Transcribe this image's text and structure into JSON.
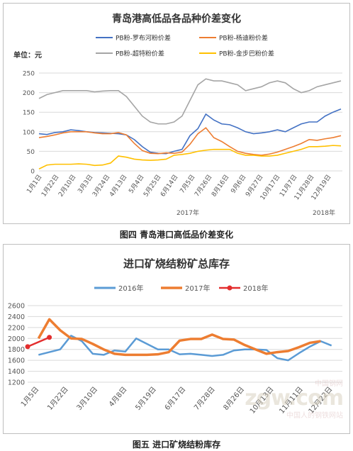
{
  "chart_data": [
    {
      "type": "line",
      "title": "青岛港高低品各品种价差变化",
      "unit_label": "单位：元",
      "xlabel": "2017年",
      "xlabel_end": "2018年",
      "ylim": [
        0,
        250
      ],
      "yticks": [
        "0",
        "50",
        "100",
        "150",
        "200",
        "250"
      ],
      "grid": true,
      "legend_position": "top",
      "tick_labels": [
        "1月1日",
        "1月22日",
        "2月10日",
        "3月3日",
        "3月24日",
        "4月13日",
        "5月4日",
        "5月25日",
        "6月14日",
        "7月5日",
        "7月26日",
        "8月16日",
        "9月6日",
        "9月27日",
        "10月17日",
        "11月7日",
        "11月28日",
        "12月19日"
      ],
      "series": [
        {
          "name": "PB粉-罗布河粉价差",
          "color": "#4472c4",
          "values": [
            95,
            93,
            98,
            100,
            105,
            103,
            100,
            98,
            97,
            96,
            95,
            92,
            80,
            62,
            48,
            45,
            44,
            50,
            55,
            90,
            108,
            145,
            130,
            120,
            118,
            110,
            100,
            95,
            97,
            100,
            105,
            100,
            110,
            120,
            125,
            125,
            140,
            150,
            158
          ]
        },
        {
          "name": "PB粉-杨迪粉价差",
          "color": "#ed7d31",
          "values": [
            85,
            88,
            92,
            97,
            100,
            100,
            100,
            97,
            95,
            95,
            98,
            92,
            70,
            52,
            45,
            44,
            46,
            45,
            48,
            68,
            95,
            110,
            85,
            75,
            62,
            50,
            45,
            42,
            40,
            43,
            48,
            55,
            62,
            70,
            80,
            78,
            82,
            85,
            90
          ]
        },
        {
          "name": "PB粉-超特粉价差",
          "color": "#a5a5a5",
          "values": [
            185,
            195,
            200,
            205,
            205,
            205,
            205,
            202,
            204,
            205,
            205,
            190,
            165,
            140,
            125,
            120,
            120,
            125,
            140,
            180,
            220,
            235,
            230,
            230,
            225,
            220,
            205,
            210,
            215,
            225,
            230,
            225,
            210,
            200,
            205,
            215,
            220,
            225,
            230
          ]
        },
        {
          "name": "PB粉-金步巴粉价差",
          "color": "#ffc000",
          "values": [
            5,
            15,
            17,
            17,
            17,
            18,
            17,
            14,
            15,
            20,
            38,
            35,
            30,
            28,
            27,
            28,
            30,
            40,
            42,
            45,
            50,
            53,
            55,
            55,
            55,
            45,
            40,
            40,
            38,
            38,
            40,
            45,
            50,
            55,
            62,
            62,
            63,
            65,
            64
          ]
        }
      ]
    },
    {
      "type": "line",
      "title": "进口矿烧结粉矿总库存",
      "ylim": [
        1200,
        2600
      ],
      "yticks": [
        "1200",
        "1400",
        "1600",
        "1800",
        "2000",
        "2200",
        "2400",
        "2600"
      ],
      "grid": true,
      "legend_position": "top",
      "tick_labels": [
        "1月5日",
        "1月22日",
        "3月10日",
        "4月8日",
        "5月19日",
        "6月17日",
        "7月28日",
        "8月26日",
        "10月13日",
        "11月11日",
        "12月22日"
      ],
      "x_count": 30,
      "series": [
        {
          "name": "2016年",
          "color": "#5b9bd5",
          "x": [
            2,
            3,
            4,
            5,
            6,
            7,
            8,
            9,
            10,
            11,
            12,
            13,
            14,
            15,
            16,
            17,
            18,
            19,
            20,
            21,
            22,
            23,
            24,
            25,
            26,
            27,
            28,
            29
          ],
          "values": [
            1700,
            1750,
            1800,
            2050,
            1950,
            1720,
            1700,
            1780,
            1760,
            2000,
            1900,
            1800,
            1800,
            1710,
            1720,
            1700,
            1680,
            1700,
            1780,
            1800,
            1800,
            1790,
            1640,
            1600,
            1730,
            1850,
            1950,
            1870
          ]
        },
        {
          "name": "2017年",
          "color": "#ed7d31",
          "x": [
            2,
            3,
            4,
            5,
            6,
            7,
            8,
            9,
            10,
            11,
            12,
            13,
            14,
            15,
            16,
            17,
            18,
            19,
            20,
            21,
            22,
            23,
            24,
            25,
            26,
            27,
            28
          ],
          "values": [
            2000,
            2350,
            2150,
            2000,
            1990,
            1900,
            1800,
            1720,
            1700,
            1700,
            1700,
            1710,
            1750,
            1960,
            1990,
            1990,
            2070,
            1990,
            1980,
            1880,
            1800,
            1720,
            1750,
            1770,
            1840,
            1920,
            1950
          ]
        },
        {
          "name": "2018年",
          "color": "#e32e2e",
          "x": [
            1,
            3
          ],
          "values": [
            1850,
            2020
          ]
        }
      ]
    }
  ],
  "figure_captions": {
    "caption1": "图四 青岛港口高低品价差变化",
    "caption2": "图五  进口矿烧结粉库存"
  },
  "watermark": {
    "brand": "zgw.com",
    "sub": "中国人的钢铁网站",
    "small": "中国钢网"
  }
}
